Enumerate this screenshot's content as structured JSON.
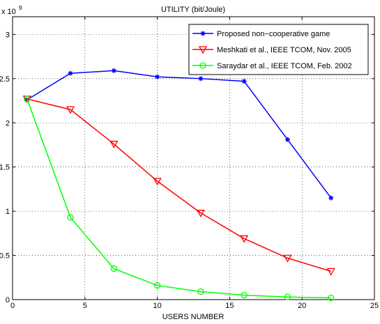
{
  "chart_data": {
    "type": "line",
    "title": "UTILITY (bit/Joule)",
    "xlabel": "USERS NUMBER",
    "ylabel": "",
    "y_exponent_label": "x 10",
    "y_exponent_power": "9",
    "xlim": [
      0,
      25
    ],
    "ylim": [
      0,
      3.2
    ],
    "xticks": [
      0,
      5,
      10,
      15,
      20,
      25
    ],
    "xtick_labels": [
      "0",
      "5",
      "10",
      "15",
      "20",
      "25"
    ],
    "yticks": [
      0,
      0.5,
      1,
      1.5,
      2,
      2.5,
      3
    ],
    "ytick_labels": [
      "0",
      "0.5",
      "1",
      "1.5",
      "2",
      "2.5",
      "3"
    ],
    "grid": true,
    "legend_position": "top-right",
    "x": [
      1,
      4,
      7,
      10,
      13,
      16,
      19,
      22
    ],
    "series": [
      {
        "name": "Proposed non−cooperative game",
        "color": "#0000ff",
        "marker": "asterisk",
        "values": [
          2.26,
          2.56,
          2.59,
          2.52,
          2.5,
          2.47,
          1.81,
          1.15
        ]
      },
      {
        "name": "Meshkati et al., IEEE TCOM, Nov. 2005",
        "color": "#ff0000",
        "marker": "triangle-down",
        "values": [
          2.27,
          2.15,
          1.76,
          1.34,
          0.98,
          0.69,
          0.47,
          0.32
        ]
      },
      {
        "name": "Saraydar et al., IEEE TCOM, Feb. 2002",
        "color": "#00ff00",
        "marker": "circle",
        "values": [
          2.27,
          0.93,
          0.35,
          0.16,
          0.09,
          0.05,
          0.03,
          0.02
        ]
      }
    ]
  }
}
